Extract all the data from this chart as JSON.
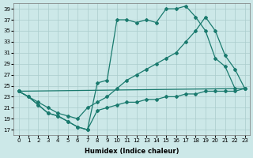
{
  "xlabel": "Humidex (Indice chaleur)",
  "bg_color": "#cce8e8",
  "grid_color": "#aacccc",
  "line_color": "#1a7a6e",
  "xlim": [
    -0.5,
    23.5
  ],
  "ylim": [
    16,
    40
  ],
  "xticks": [
    0,
    1,
    2,
    3,
    4,
    5,
    6,
    7,
    8,
    9,
    10,
    11,
    12,
    13,
    14,
    15,
    16,
    17,
    18,
    19,
    20,
    21,
    22,
    23
  ],
  "yticks": [
    17,
    19,
    21,
    23,
    25,
    27,
    29,
    31,
    33,
    35,
    37,
    39
  ],
  "curve1_x": [
    0,
    1,
    2,
    3,
    4,
    5,
    6,
    7,
    8,
    9,
    10,
    11,
    12,
    13,
    14,
    15,
    16,
    17,
    18,
    19,
    20,
    21,
    22
  ],
  "curve1_y": [
    24,
    23,
    21.5,
    20,
    19.5,
    18.5,
    17.5,
    17,
    25.5,
    26,
    37,
    37,
    36.5,
    37,
    36.5,
    39,
    39,
    39.5,
    37.5,
    35,
    30,
    28.5,
    24.5
  ],
  "curve2_x": [
    0,
    1,
    2,
    3,
    4,
    5,
    6,
    7,
    8,
    9,
    10,
    11,
    12,
    13,
    14,
    15,
    16,
    17,
    18,
    19,
    20,
    21,
    22,
    23
  ],
  "curve2_y": [
    24,
    23,
    21.5,
    20,
    19.5,
    18.5,
    17.5,
    17,
    20.5,
    21,
    21.5,
    22,
    22,
    22.5,
    22.5,
    23,
    23,
    23.5,
    23.5,
    24,
    24,
    24,
    24,
    24.5
  ],
  "curve3_x": [
    0,
    2,
    3,
    4,
    5,
    6,
    7,
    8,
    9,
    10,
    11,
    12,
    13,
    14,
    15,
    16,
    17,
    18,
    19,
    20,
    21,
    22,
    23
  ],
  "curve3_y": [
    24,
    22,
    21,
    20,
    19.5,
    19,
    21,
    22,
    23,
    24.5,
    26,
    27,
    28,
    29,
    30,
    31,
    33,
    35,
    37.5,
    35,
    30.5,
    28,
    24.5
  ],
  "curve4_x": [
    0,
    23
  ],
  "curve4_y": [
    24,
    24.5
  ]
}
